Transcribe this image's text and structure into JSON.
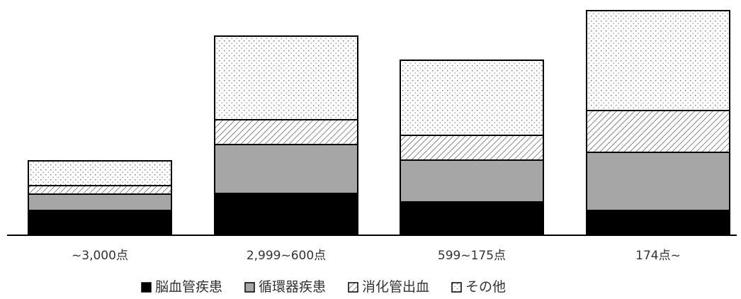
{
  "chart_data": {
    "type": "bar",
    "stacked": true,
    "categories": [
      "~3,000点",
      "2,999~600点",
      "599~175点",
      "174点~"
    ],
    "series": [
      {
        "name": "脳血管疾患",
        "values": [
          35,
          59,
          47,
          35
        ],
        "pattern": "solid-black"
      },
      {
        "name": "循環器疾患",
        "values": [
          23,
          69,
          59,
          82
        ],
        "pattern": "solid-gray"
      },
      {
        "name": "消化管出血",
        "values": [
          12,
          35,
          35,
          59
        ],
        "pattern": "hatch"
      },
      {
        "name": "その他",
        "values": [
          35,
          118,
          106,
          141
        ],
        "pattern": "dots"
      }
    ],
    "ylim": [
      0,
      320
    ],
    "legend_position": "bottom",
    "grid": false,
    "colors": {
      "solid-black": "#000000",
      "solid-gray": "#a6a6a6",
      "hatch": "#ffffff",
      "dots": "#ffffff"
    }
  }
}
